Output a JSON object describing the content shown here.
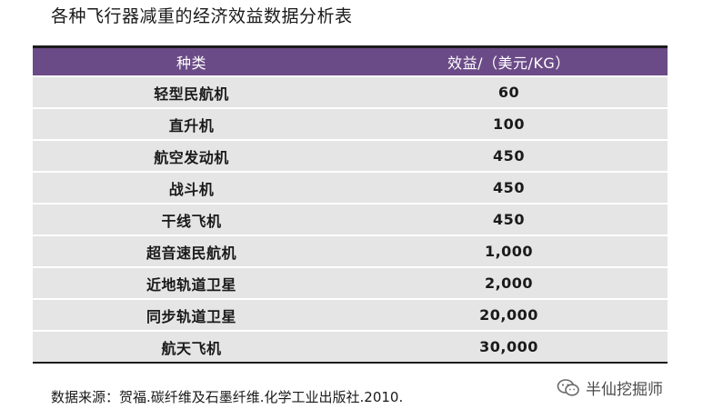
{
  "title": "各种飞行器减重的经济效益数据分析表",
  "table": {
    "headers": {
      "type": "种类",
      "value": "效益/（美元/KG）"
    },
    "rows": [
      {
        "type": "轻型民航机",
        "value": "60"
      },
      {
        "type": "直升机",
        "value": "100"
      },
      {
        "type": "航空发动机",
        "value": "450"
      },
      {
        "type": "战斗机",
        "value": "450"
      },
      {
        "type": "干线飞机",
        "value": "450"
      },
      {
        "type": "超音速民航机",
        "value": "1,000"
      },
      {
        "type": "近地轨道卫星",
        "value": "2,000"
      },
      {
        "type": "同步轨道卫星",
        "value": "20,000"
      },
      {
        "type": "航天飞机",
        "value": "30,000"
      }
    ]
  },
  "source": "数据来源：贺福.碳纤维及石墨纤维.化学工业出版社.2010.",
  "watermark": {
    "icon": "wechat-bubble-icon",
    "text": "半仙挖掘师"
  },
  "colors": {
    "header_bg": "#6b4b87",
    "row_bg": "#e5e5e5"
  }
}
